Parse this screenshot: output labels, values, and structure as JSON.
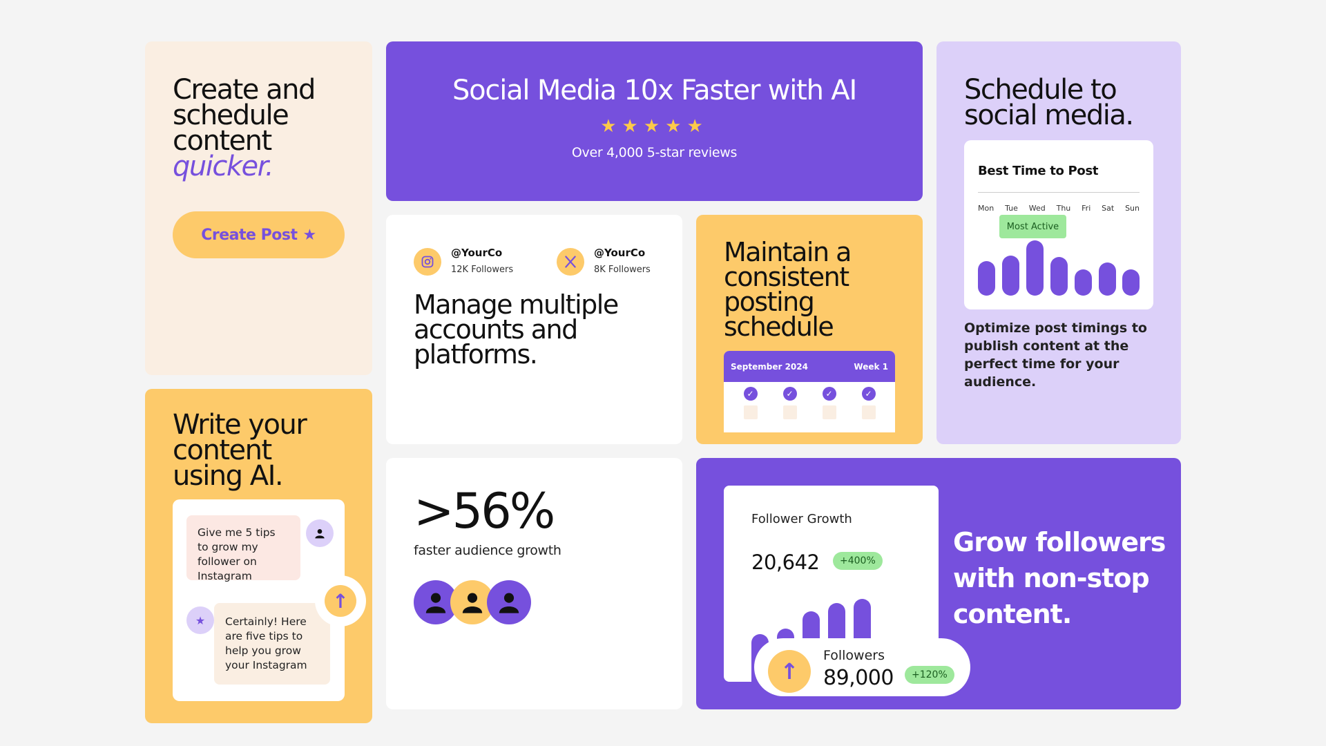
{
  "card_create": {
    "line1": "Create and",
    "line2": "schedule",
    "line3": "content",
    "accent": "quicker.",
    "button_label": "Create Post",
    "button_icon": "star-icon"
  },
  "hero": {
    "title": "Social Media 10x Faster with AI",
    "stars": "★★★★★",
    "subtitle": "Over 4,000 5-star reviews",
    "rating": 5
  },
  "schedule": {
    "line1": "Schedule to",
    "line2": "social media.",
    "widget_title": "Best Time to Post",
    "days": [
      "Mon",
      "Tue",
      "Wed",
      "Thu",
      "Fri",
      "Sat",
      "Sun"
    ],
    "badge": "Most Active",
    "description": "Optimize post timings to publish content at the perfect time for your audience."
  },
  "accounts": {
    "items": [
      {
        "icon": "instagram-icon",
        "handle": "@YourCo",
        "followers": "12K Followers"
      },
      {
        "icon": "x-icon",
        "handle": "@YourCo",
        "followers": "8K Followers"
      }
    ],
    "line1": "Manage multiple",
    "line2": "accounts and",
    "line3": "platforms."
  },
  "consistent": {
    "line1": "Maintain a",
    "line2": "consistent",
    "line3": "posting",
    "line4": "schedule",
    "month": "September 2024",
    "week": "Week 1",
    "check": "✓"
  },
  "ai": {
    "line1": "Write your",
    "line2": "content",
    "line3": "using AI.",
    "user_msg": "Give me 5 tips to grow my follower on Instagram",
    "ai_msg": "Certainly! Here are five tips to help you grow your Instagram",
    "send_icon": "↑",
    "ai_icon": "★"
  },
  "growth_stat": {
    "value": ">56%",
    "label": "faster audience growth"
  },
  "followers": {
    "widget_title": "Follower Growth",
    "count": "20,642",
    "count_change": "+400%",
    "label": "Followers",
    "total": "89,000",
    "total_change": "+120%",
    "up_icon": "↑",
    "heading": "Grow followers with non-stop content."
  },
  "colors": {
    "purple": "#7650dd",
    "yellow": "#fdca6a",
    "cream": "#faeee2",
    "lavender": "#dcd0f9",
    "green": "#9ee89c"
  }
}
